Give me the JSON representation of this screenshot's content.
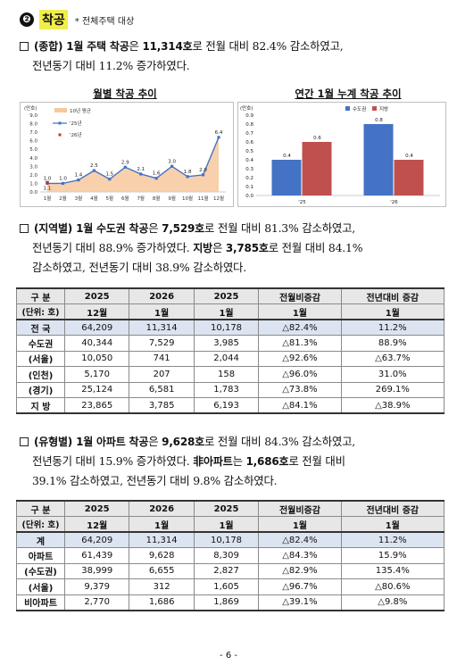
{
  "section": {
    "number": "❷",
    "title": "착공",
    "note": "* 전체주택 대상"
  },
  "para1": {
    "b1": "(종합) 1월 주택 착공",
    "t1": "은 ",
    "b2": "11,314호",
    "t2": "로 전월 대비 82.4% 감소하였고,",
    "line2": "전년동기 대비 11.2% 증가하였다."
  },
  "chart_left": {
    "type": "line",
    "title": "월별 착공 추이",
    "unit": "(만호)",
    "yticks": [
      "9.0",
      "8.0",
      "7.0",
      "6.0",
      "5.0",
      "4.0",
      "3.0",
      "2.0",
      "1.0",
      "0.0"
    ],
    "categories": [
      "1월",
      "2월",
      "3월",
      "4월",
      "5월",
      "6월",
      "7월",
      "8월",
      "9월",
      "10월",
      "11월",
      "12월"
    ],
    "legend": [
      "10년 평균",
      "'25년",
      "'26년"
    ],
    "ylim": [
      0,
      9
    ],
    "series": [
      {
        "name": "10년 평균",
        "values": [
          1.0,
          1.0,
          1.4,
          2.5,
          1.5,
          2.9,
          2.1,
          1.6,
          3.0,
          1.8,
          2.0,
          6.4
        ]
      },
      {
        "name": "'25년",
        "values": [
          1.0,
          1.0,
          1.4,
          2.5,
          1.5,
          2.9,
          2.1,
          1.6,
          3.0,
          1.8,
          2.0,
          6.4
        ]
      },
      {
        "name": "'26년",
        "values": [
          1.1
        ]
      }
    ],
    "labels": [
      "1.0",
      "1.0",
      "1.4",
      "2.5",
      "1.5",
      "2.9",
      "2.1",
      "1.6",
      "3.0",
      "1.8",
      "2.0",
      "6.4"
    ],
    "label_26": "1.1",
    "color_25": "#4472c4",
    "color_26": "#c0392b",
    "color_avg": "#f7c89c"
  },
  "chart_right": {
    "type": "bar",
    "title": "연간 1월 누계 착공 추이",
    "unit": "(만호)",
    "yticks": [
      "0.9",
      "0.8",
      "0.7",
      "0.6",
      "0.5",
      "0.4",
      "0.3",
      "0.2",
      "0.1",
      "0.0"
    ],
    "categories": [
      "'25",
      "'26"
    ],
    "legend": [
      "수도권",
      "지방"
    ],
    "ylim": [
      0,
      0.9
    ],
    "series": [
      {
        "name": "수도권",
        "values": [
          0.4,
          0.8
        ]
      },
      {
        "name": "지방",
        "values": [
          0.6,
          0.4
        ]
      }
    ],
    "value_labels": [
      [
        "0.4",
        "0.6"
      ],
      [
        "0.8",
        "0.4"
      ]
    ],
    "color_capital": "#4472c4",
    "color_local": "#c0504d"
  },
  "para2": {
    "b1": "(지역별) 1월 수도권 착공",
    "t1": "은 ",
    "b2": "7,529호",
    "t2": "로 전월 대비 81.3% 감소하였고,",
    "t3": "전년동기 대비 88.9% 증가하였다. ",
    "b3": "지방",
    "t4": "은 ",
    "b4": "3,785호",
    "t5": "로 전월 대비 84.1%",
    "t6": "감소하였고, 전년동기 대비 38.9% 감소하였다."
  },
  "table1": {
    "header1": [
      "구 분",
      "2025",
      "2026",
      "2025",
      "전월비증감",
      "전년대비 증감"
    ],
    "header2": [
      "(단위: 호)",
      "12월",
      "1월",
      "1월",
      "1월",
      "1월"
    ],
    "rows": [
      [
        "전 국",
        "64,209",
        "11,314",
        "10,178",
        "△82.4%",
        "11.2%"
      ],
      [
        "수도권",
        "40,344",
        "7,529",
        "3,985",
        "△81.3%",
        "88.9%"
      ],
      [
        "(서울)",
        "10,050",
        "741",
        "2,044",
        "△92.6%",
        "△63.7%"
      ],
      [
        "(인천)",
        "5,170",
        "207",
        "158",
        "△96.0%",
        "31.0%"
      ],
      [
        "(경기)",
        "25,124",
        "6,581",
        "1,783",
        "△73.8%",
        "269.1%"
      ],
      [
        "지 방",
        "23,865",
        "3,785",
        "6,193",
        "△84.1%",
        "△38.9%"
      ]
    ]
  },
  "para3": {
    "b1": "(유형별) 1월 아파트 착공",
    "t1": "은 ",
    "b2": "9,628호",
    "t2": "로 전월 대비 84.3% 감소하였고,",
    "t3": "전년동기 대비 15.9% 증가하였다. ",
    "b3": "非아파트",
    "t4": "는 ",
    "b4": "1,686호",
    "t5": "로 전월 대비",
    "t6": "39.1% 감소하였고, 전년동기 대비 9.8% 감소하였다."
  },
  "table2": {
    "header1": [
      "구 분",
      "2025",
      "2026",
      "2025",
      "전월비증감",
      "전년대비 증감"
    ],
    "header2": [
      "(단위: 호)",
      "12월",
      "1월",
      "1월",
      "1월",
      "1월"
    ],
    "rows": [
      [
        "계",
        "64,209",
        "11,314",
        "10,178",
        "△82.4%",
        "11.2%"
      ],
      [
        "아파트",
        "61,439",
        "9,628",
        "8,309",
        "△84.3%",
        "15.9%"
      ],
      [
        "(수도권)",
        "38,999",
        "6,655",
        "2,827",
        "△82.9%",
        "135.4%"
      ],
      [
        "(서울)",
        "9,379",
        "312",
        "1,605",
        "△96.7%",
        "△80.6%"
      ],
      [
        "비아파트",
        "2,770",
        "1,686",
        "1,869",
        "△39.1%",
        "△9.8%"
      ]
    ]
  },
  "page_number": "- 6 -"
}
